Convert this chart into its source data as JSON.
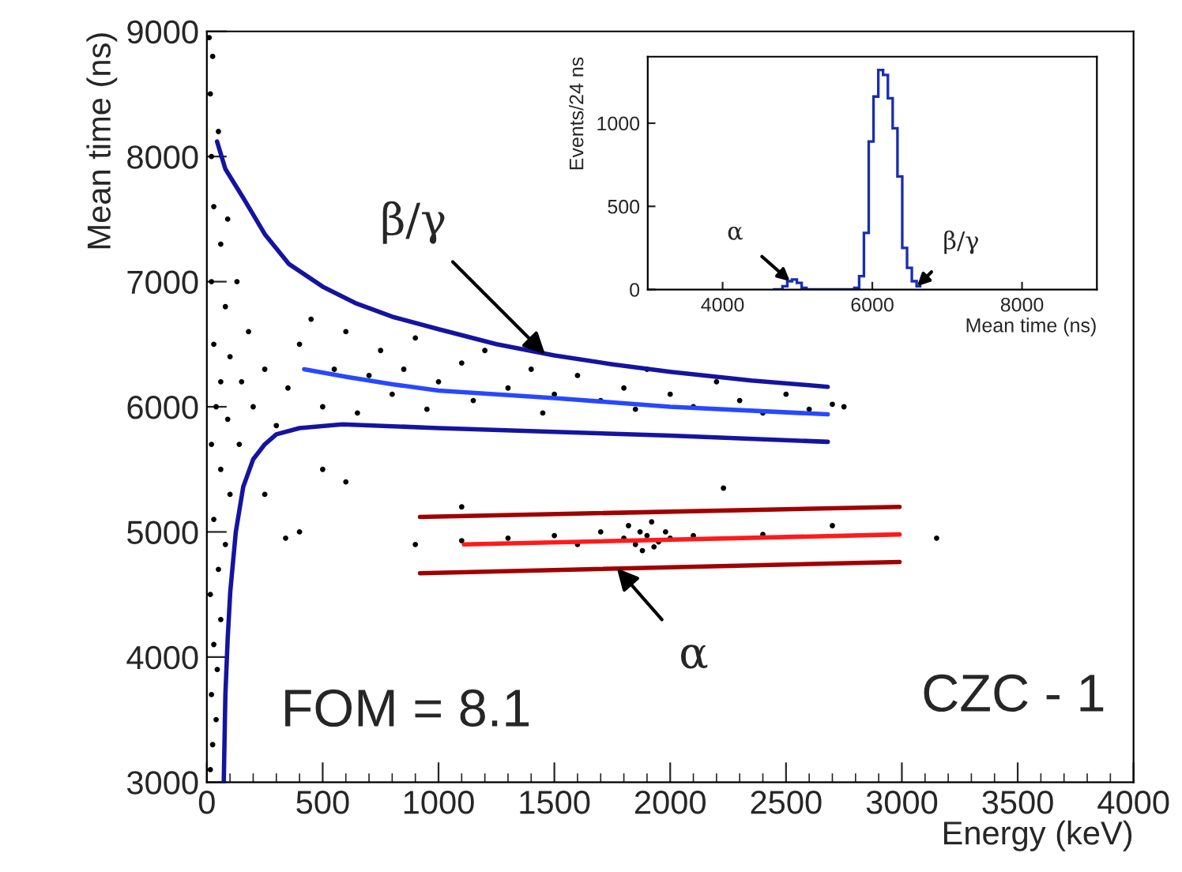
{
  "chart_data": [
    {
      "type": "scatter",
      "xlabel": "Energy (keV)",
      "ylabel": "Mean time (ns)",
      "xlim": [
        0,
        4000
      ],
      "xticks": [
        0,
        500,
        1000,
        1500,
        2000,
        2500,
        3000,
        3500,
        4000
      ],
      "ylim": [
        3000,
        9000
      ],
      "yticks": [
        3000,
        4000,
        5000,
        6000,
        7000,
        8000,
        9000
      ],
      "grid": false,
      "legend": false,
      "series": [
        {
          "type": "scatter",
          "marker": "circle",
          "color": "#000000",
          "x": [
            15,
            25,
            40,
            20,
            45,
            30,
            60,
            15,
            50,
            80,
            30,
            100,
            60,
            20,
            140,
            90,
            40,
            200,
            150,
            60,
            250,
            100,
            30,
            180,
            80,
            20,
            130,
            60,
            30,
            90,
            20,
            50,
            15,
            25,
            10,
            300,
            350,
            400,
            450,
            500,
            550,
            600,
            650,
            700,
            750,
            800,
            850,
            900,
            950,
            1000,
            1100,
            1150,
            1200,
            1300,
            1400,
            1450,
            1500,
            1600,
            1700,
            1800,
            1850,
            1900,
            2000,
            2100,
            2200,
            2300,
            2400,
            2500,
            2600,
            2700,
            2750,
            250,
            400,
            500,
            340,
            600,
            900,
            1100,
            3150,
            2230,
            1100,
            1300,
            1500,
            1600,
            1700,
            1800,
            1820,
            1850,
            1870,
            1900,
            1920,
            1950,
            1980,
            2000,
            1880,
            1930,
            2100,
            2400,
            2700
          ],
          "values": [
            3100,
            3300,
            3500,
            3700,
            3900,
            4100,
            4300,
            4500,
            4700,
            4900,
            5100,
            5300,
            5500,
            5700,
            5700,
            5900,
            6000,
            6000,
            6200,
            6200,
            6300,
            6400,
            6500,
            6600,
            6800,
            7000,
            7000,
            7300,
            7600,
            7500,
            8000,
            8200,
            8500,
            8800,
            8950,
            5850,
            6150,
            6500,
            6700,
            6000,
            6300,
            6600,
            5950,
            6250,
            6450,
            6100,
            6300,
            6550,
            5980,
            6200,
            6350,
            6050,
            6450,
            6150,
            6300,
            5950,
            6100,
            6250,
            6050,
            6150,
            5980,
            6300,
            6100,
            6000,
            6200,
            6050,
            5950,
            6100,
            5980,
            6020,
            6000,
            5300,
            5000,
            5500,
            4950,
            5400,
            4900,
            5200,
            4950,
            5350,
            4930,
            4950,
            4970,
            4900,
            5000,
            4950,
            5050,
            4900,
            5000,
            4970,
            5080,
            4920,
            5000,
            4950,
            4850,
            4880,
            4970,
            4980,
            5050
          ]
        },
        {
          "type": "line",
          "color": "#1414a0",
          "x": [
            44,
            80,
            157,
            250,
            355,
            500,
            640,
            800,
            1000,
            1250,
            1500,
            1750,
            2000,
            2350,
            2680
          ],
          "values": [
            8120,
            7900,
            7670,
            7380,
            7140,
            6960,
            6830,
            6720,
            6620,
            6500,
            6410,
            6340,
            6280,
            6210,
            6160
          ]
        },
        {
          "type": "line",
          "color": "#2848ff",
          "x": [
            420,
            600,
            800,
            1000,
            1500,
            2000,
            2680
          ],
          "values": [
            6300,
            6240,
            6180,
            6130,
            6070,
            6000,
            5940
          ]
        },
        {
          "type": "line",
          "color": "#1414a0",
          "x": [
            73,
            80,
            90,
            101,
            125,
            157,
            200,
            250,
            300,
            400,
            585,
            1000,
            1500,
            2000,
            2680
          ],
          "values": [
            3000,
            3700,
            4150,
            4520,
            5000,
            5360,
            5580,
            5700,
            5780,
            5830,
            5860,
            5830,
            5800,
            5770,
            5720
          ]
        },
        {
          "type": "line",
          "color": "#a00000",
          "x": [
            920,
            2990
          ],
          "values": [
            5120,
            5200
          ]
        },
        {
          "type": "line",
          "color": "#ff1a1a",
          "x": [
            1110,
            2990
          ],
          "values": [
            4900,
            4980
          ]
        },
        {
          "type": "line",
          "color": "#a00000",
          "x": [
            920,
            2990
          ],
          "values": [
            4670,
            4760
          ]
        }
      ],
      "annotations": [
        {
          "text": "β/γ",
          "x": 1460,
          "y": 6420
        },
        {
          "text": "α",
          "x": 1770,
          "y": 4710
        },
        "FOM = 8.1",
        "CZC - 1"
      ]
    },
    {
      "type": "histogram",
      "xlabel": "Mean time (ns)",
      "ylabel": "Events/24 ns",
      "color": "#1a2db0",
      "xlim": [
        3000,
        9000
      ],
      "xticks": [
        4000,
        6000,
        8000
      ],
      "ylim": [
        0,
        1400
      ],
      "yticks": [
        0,
        500,
        1000
      ],
      "grid": false,
      "legend": false,
      "bins": [
        4672,
        4736,
        4800,
        4864,
        4928,
        4992,
        5056,
        5120,
        5184,
        5248,
        5312,
        5376,
        5440,
        5504,
        5568,
        5632,
        5696,
        5760,
        5824,
        5888,
        5952,
        6016,
        6080,
        6144,
        6208,
        6272,
        6336,
        6400,
        6464,
        6528,
        6592,
        6656
      ],
      "values": [
        0,
        0,
        20,
        50,
        60,
        40,
        10,
        0,
        0,
        0,
        0,
        0,
        0,
        0,
        0,
        0,
        0,
        10,
        80,
        340,
        890,
        1160,
        1320,
        1290,
        1150,
        970,
        680,
        250,
        130,
        50,
        20
      ],
      "annotations": [
        {
          "text": "α",
          "x": 4900,
          "y": 50
        },
        {
          "text": "β/γ",
          "x": 6600,
          "y": 20
        }
      ]
    }
  ]
}
